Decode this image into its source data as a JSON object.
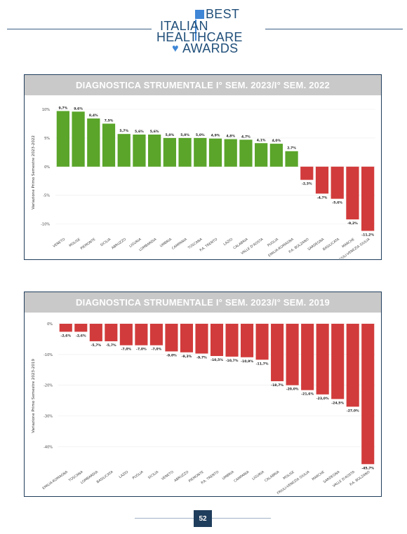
{
  "logo": {
    "word1": "BEST",
    "word2": "ITALIAN",
    "word3": "HEALTHCARE",
    "word4": "AWARDS"
  },
  "colors": {
    "positive": "#5aa52a",
    "negative": "#d23b3b",
    "title_bar": "#c9c9c9",
    "frame": "#1f3d5c"
  },
  "chart_data": [
    {
      "type": "bar",
      "title": "DIAGNOSTICA STRUMENTALE I° SEM. 2023/I° SEM. 2022",
      "ylabel": "Variazione Primo Semestre 2023-2022",
      "ylim": [
        -12,
        10
      ],
      "yticks": [
        10,
        5,
        0,
        -5,
        -10
      ],
      "ytick_labels": [
        "10%",
        "5%",
        "0%",
        "-5%",
        "-10%"
      ],
      "categories": [
        "VENETO",
        "MOLISE",
        "PIEMONTE",
        "SICILIA",
        "ABRUZZO",
        "LIGURIA",
        "LOMBARDIA",
        "UMBRIA",
        "CAMPANIA",
        "TOSCANA",
        "P.A. TRENTO",
        "LAZIO",
        "CALABRIA",
        "VALLE D'AOSTA",
        "PUGLIA",
        "EMILIA-ROMAGNA",
        "P.A. BOLZANO",
        "SARDEGNA",
        "BASILICATA",
        "MARCHE",
        "FRIULI-VENEZIA GIULIA"
      ],
      "values": [
        9.7,
        9.6,
        8.4,
        7.5,
        5.7,
        5.6,
        5.6,
        5.0,
        5.0,
        5.0,
        4.9,
        4.8,
        4.7,
        4.1,
        4.0,
        2.7,
        -2.3,
        -4.7,
        -5.6,
        -9.2,
        -11.2
      ],
      "value_labels": [
        "9,7%",
        "9,6%",
        "8,4%",
        "7,5%",
        "5,7%",
        "5,6%",
        "5,6%",
        "5,0%",
        "5,0%",
        "5,0%",
        "4,9%",
        "4,8%",
        "4,7%",
        "4,1%",
        "4,0%",
        "2,7%",
        "-2,3%",
        "-4,7%",
        "-5,6%",
        "-9,2%",
        "-11,2%"
      ]
    },
    {
      "type": "bar",
      "title": "DIAGNOSTICA STRUMENTALE I° SEM. 2023/I° SEM. 2019",
      "ylabel": "Variazione Primo Semestre 2023-2019",
      "ylim": [
        -47,
        0
      ],
      "yticks": [
        0,
        -10,
        -20,
        -30,
        -40
      ],
      "ytick_labels": [
        "0%",
        "-10%",
        "-20%",
        "-30%",
        "-40%"
      ],
      "categories": [
        "EMILIA-ROMAGNA",
        "TOSCANA",
        "LOMBARDIA",
        "BASILICATA",
        "LAZIO",
        "PUGLIA",
        "SICILIA",
        "VENETO",
        "ABRUZZO",
        "PIEMONTE",
        "P.A. TRENTO",
        "UMBRIA",
        "CAMPANIA",
        "LIGURIA",
        "CALABRIA",
        "MOLISE",
        "FRIULI-VENEZIA GIULIA",
        "MARCHE",
        "SARDEGNA",
        "VALLE D'AOSTA",
        "P.A. BOLZANO"
      ],
      "values": [
        -2.6,
        -2.6,
        -5.7,
        -5.7,
        -7.0,
        -7.0,
        -7.0,
        -9.0,
        -9.3,
        -9.7,
        -10.5,
        -10.7,
        -10.9,
        -11.7,
        -18.7,
        -20.0,
        -21.6,
        -23.0,
        -24.5,
        -27.0,
        -45.7
      ],
      "value_labels": [
        "-2,6%",
        "-2,6%",
        "-5,7%",
        "-5,7%",
        "-7,0%",
        "-7,0%",
        "-7,0%",
        "-9,0%",
        "-9,3%",
        "-9,7%",
        "-10,5%",
        "-10,7%",
        "-10,9%",
        "-11,7%",
        "-18,7%",
        "-20,0%",
        "-21,6%",
        "-23,0%",
        "-24,5%",
        "-27,0%",
        "-45,7%"
      ]
    }
  ],
  "footer": {
    "page_number": "52"
  }
}
